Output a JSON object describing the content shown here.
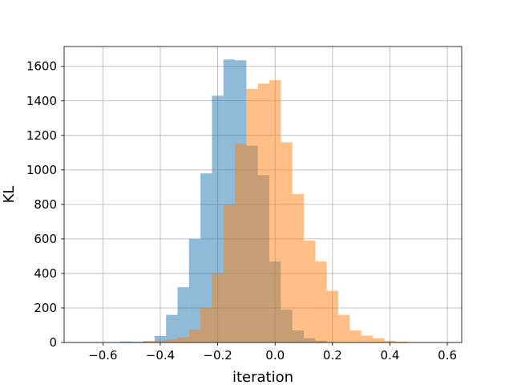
{
  "chart_data": {
    "type": "histogram",
    "xlabel": "iteration",
    "ylabel": "KL",
    "xlim": [
      -0.735,
      0.65
    ],
    "ylim": [
      0,
      1715
    ],
    "grid": true,
    "xticks": [
      -0.6,
      -0.4,
      -0.2,
      0.0,
      0.2,
      0.4,
      0.6
    ],
    "xtick_labels": [
      "−0.6",
      "−0.4",
      "−0.2",
      "0.0",
      "0.2",
      "0.4",
      "0.6"
    ],
    "yticks": [
      0,
      200,
      400,
      600,
      800,
      1000,
      1200,
      1400,
      1600
    ],
    "ytick_labels": [
      "0",
      "200",
      "400",
      "600",
      "800",
      "1000",
      "1200",
      "1400",
      "1600"
    ],
    "series": [
      {
        "color": "#1f77b4",
        "opacity": 0.5,
        "bin_edges": [
          -0.58,
          -0.54,
          -0.5,
          -0.46,
          -0.42,
          -0.38,
          -0.34,
          -0.3,
          -0.26,
          -0.22,
          -0.18,
          -0.14,
          -0.1,
          -0.06,
          -0.02,
          0.02,
          0.06,
          0.1,
          0.14,
          0.18,
          0.22
        ],
        "counts": [
          2,
          6,
          4,
          8,
          38,
          160,
          320,
          600,
          980,
          1430,
          1640,
          1635,
          1140,
          970,
          470,
          190,
          70,
          25,
          10,
          2
        ]
      },
      {
        "color": "#ff7f0e",
        "opacity": 0.5,
        "bin_edges": [
          -0.46,
          -0.42,
          -0.38,
          -0.34,
          -0.3,
          -0.26,
          -0.22,
          -0.18,
          -0.14,
          -0.1,
          -0.06,
          -0.02,
          0.02,
          0.06,
          0.1,
          0.14,
          0.18,
          0.22,
          0.26,
          0.3,
          0.34,
          0.38,
          0.42,
          0.46
        ],
        "counts": [
          5,
          10,
          18,
          30,
          75,
          200,
          400,
          800,
          1150,
          1470,
          1500,
          1520,
          1160,
          860,
          590,
          470,
          300,
          160,
          70,
          40,
          25,
          10,
          5
        ]
      }
    ]
  }
}
